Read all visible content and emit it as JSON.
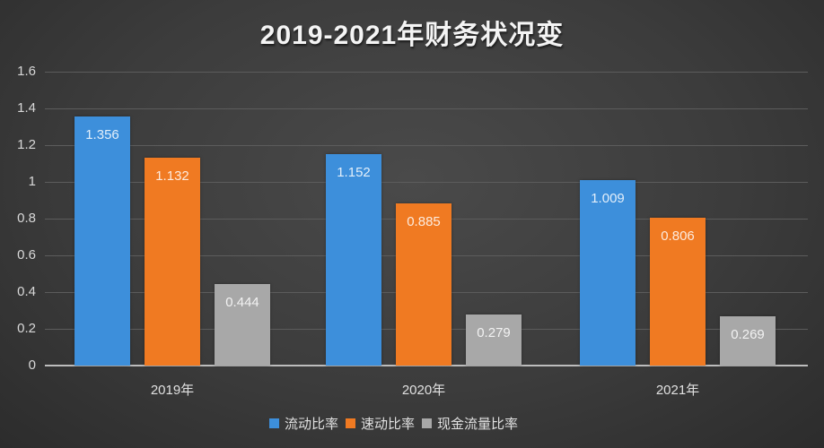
{
  "chart_data": {
    "type": "bar",
    "title": "2019-2021年财务状况变",
    "categories": [
      "2019年",
      "2020年",
      "2021年"
    ],
    "series": [
      {
        "name": "流动比率",
        "color": "#3d8fdb",
        "values": [
          1.356,
          1.152,
          1.009
        ],
        "labels": [
          "1.356",
          "1.152",
          "1.009"
        ]
      },
      {
        "name": "速动比率",
        "color": "#f07a22",
        "values": [
          1.132,
          0.885,
          0.806
        ],
        "labels": [
          "1.132",
          "0.885",
          "0.806"
        ]
      },
      {
        "name": "现金流量比率",
        "color": "#a8a8a8",
        "values": [
          0.444,
          0.279,
          0.269
        ],
        "labels": [
          "0.444",
          "0.279",
          "0.269"
        ]
      }
    ],
    "xlabel": "",
    "ylabel": "",
    "ylim": [
      0,
      1.6
    ],
    "yticks": [
      "0",
      "0.2",
      "0.4",
      "0.6",
      "0.8",
      "1",
      "1.2",
      "1.4",
      "1.6"
    ],
    "grid": true,
    "legend_position": "bottom"
  }
}
